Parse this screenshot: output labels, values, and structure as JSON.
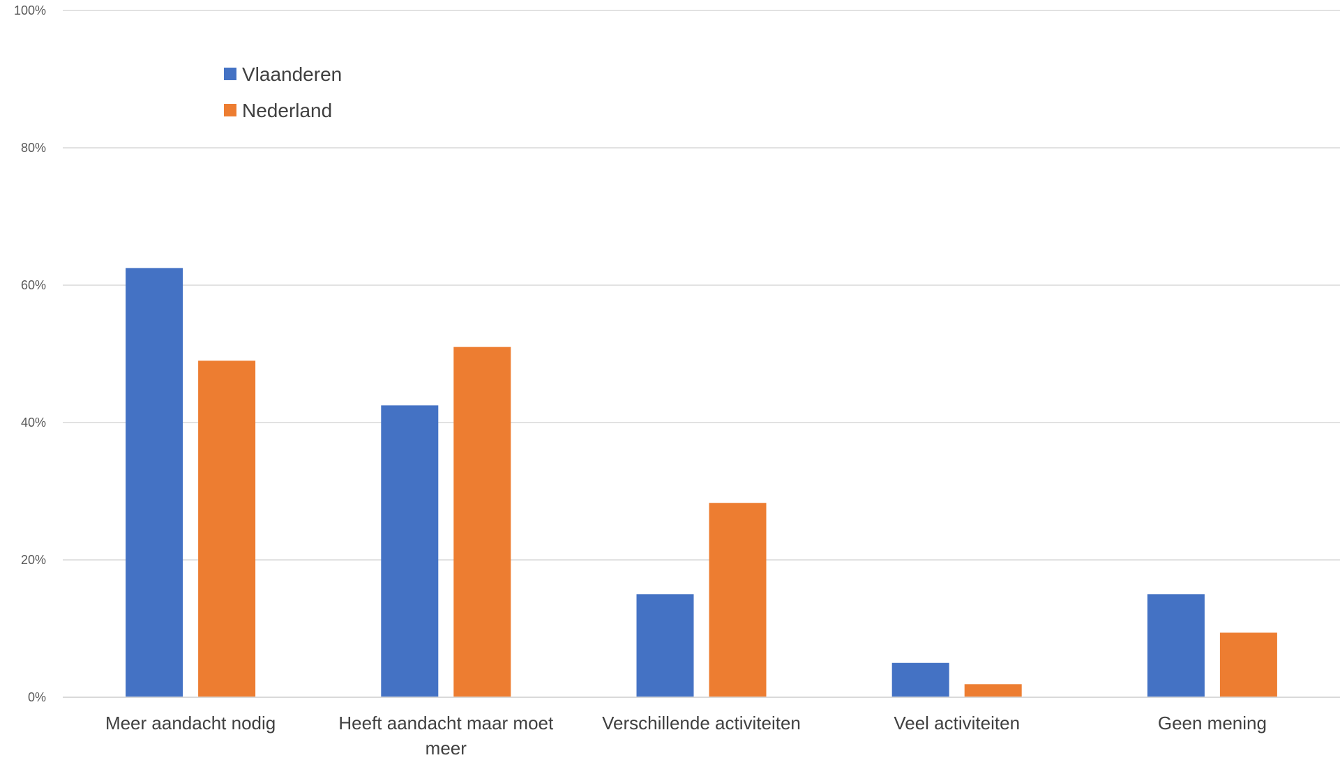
{
  "chart_data": {
    "type": "bar",
    "title": "",
    "xlabel": "",
    "ylabel": "",
    "ylim": [
      0,
      100
    ],
    "yticks": [
      "0%",
      "20%",
      "40%",
      "60%",
      "80%",
      "100%"
    ],
    "ytick_values": [
      0,
      20,
      40,
      60,
      80,
      100
    ],
    "grid": true,
    "legend_position": "top-left",
    "categories": [
      [
        "Meer aandacht nodig"
      ],
      [
        "Heeft aandacht maar moet",
        "meer"
      ],
      [
        "Verschillende activiteiten"
      ],
      [
        "Veel activiteiten"
      ],
      [
        "Geen mening"
      ]
    ],
    "series": [
      {
        "name": "Vlaanderen",
        "color": "#4472C4",
        "values": [
          62.5,
          42.5,
          15,
          5,
          15
        ]
      },
      {
        "name": "Nederland",
        "color": "#ED7D31",
        "values": [
          49,
          51,
          28.3,
          1.9,
          9.4
        ]
      }
    ]
  }
}
